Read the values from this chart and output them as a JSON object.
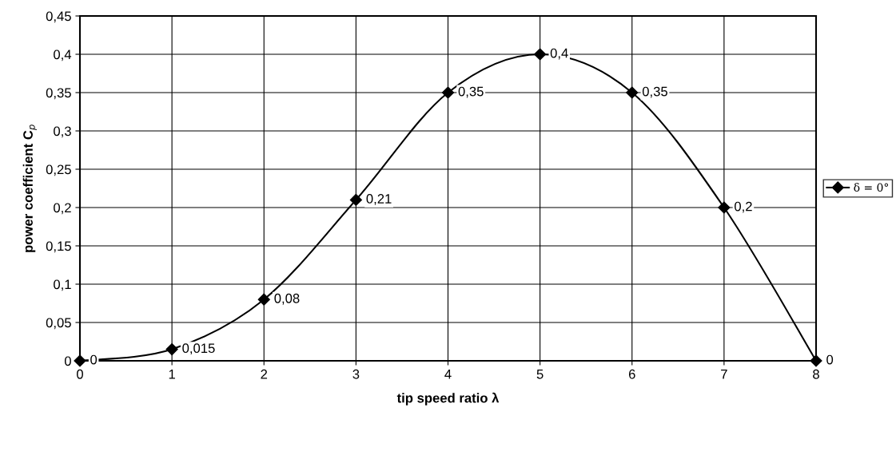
{
  "chart_data": {
    "type": "line",
    "xlabel": "tip speed ratio λ",
    "ylabel": "power coefficient C$_{p}$",
    "x": [
      0,
      1,
      2,
      3,
      4,
      5,
      6,
      7,
      8
    ],
    "series": [
      {
        "name": "δ = 0°",
        "color": "#000000",
        "values": [
          0,
          0.015,
          0.08,
          0.21,
          0.35,
          0.4,
          0.35,
          0.2,
          0
        ],
        "value_labels": [
          "0",
          "0,015",
          "0,08",
          "0,21",
          "0,35",
          "0,4",
          "0,35",
          "0,2",
          "0"
        ]
      }
    ],
    "xlim": [
      0,
      8
    ],
    "xticks": [
      0,
      1,
      2,
      3,
      4,
      5,
      6,
      7,
      8
    ],
    "ylim": [
      0,
      0.45
    ],
    "yticks": [
      0,
      {
        "value": 0.05,
        "label": "0,05"
      },
      {
        "value": 0.1,
        "label": "0,1"
      },
      {
        "value": 0.15,
        "label": "0,15"
      },
      {
        "value": 0.2,
        "label": "0,2"
      },
      {
        "value": 0.25,
        "label": "0,25"
      },
      {
        "value": 0.3,
        "label": "0,3"
      },
      {
        "value": 0.35,
        "label": "0,35"
      },
      {
        "value": 0.4,
        "label": "0,4"
      },
      {
        "value": 0.45,
        "label": "0,45"
      }
    ],
    "grid": true,
    "legend": "right",
    "marker": "diamond",
    "line_style": "solid"
  }
}
